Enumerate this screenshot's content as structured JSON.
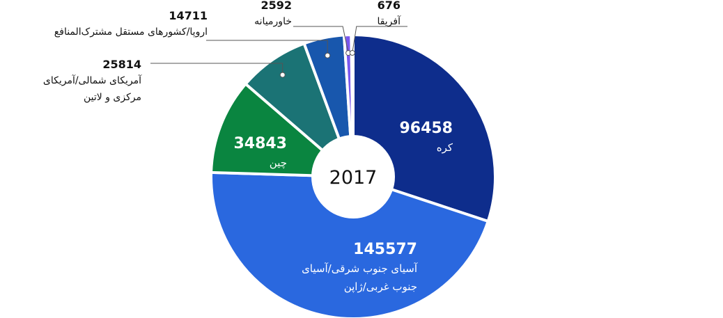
{
  "chart_data": {
    "type": "pie",
    "variant": "donut",
    "center_label": "2017",
    "slices": [
      {
        "label": "کره",
        "value": 96458,
        "value_text": "96458",
        "color": "#0e2d8c",
        "label_placement": "inside"
      },
      {
        "label": [
          "آسیای جنوب شرقی/آسیای",
          "جنوب غربی/ژاپن"
        ],
        "value": 145577,
        "value_text": "145577",
        "color": "#2a68df",
        "label_placement": "inside"
      },
      {
        "label": "چین",
        "value": 34843,
        "value_text": "34843",
        "color": "#0a8540",
        "label_placement": "inside"
      },
      {
        "label": [
          "آمریکای شمالی/آمریکای",
          "مرکزی و لاتین"
        ],
        "value": 25814,
        "value_text": "25814",
        "color": "#1b7375",
        "label_placement": "callout"
      },
      {
        "label": "اروپا/کشورهای مستقل مشترک‌المنافع",
        "value": 14711,
        "value_text": "14711",
        "color": "#1857ad",
        "label_placement": "callout"
      },
      {
        "label": "خاورمیانه",
        "value": 2592,
        "value_text": "2592",
        "color": "#7b57ee",
        "label_placement": "callout"
      },
      {
        "label": "آفریقا",
        "value": 676,
        "value_text": "676",
        "color": "#3a8ed0",
        "label_placement": "callout"
      }
    ]
  }
}
